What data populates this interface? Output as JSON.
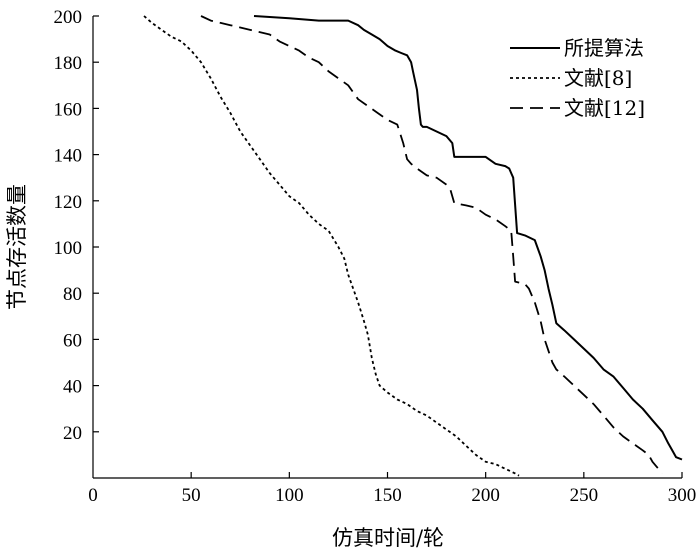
{
  "chart_data": {
    "type": "line",
    "title": "",
    "xlabel": "仿真时间/轮",
    "ylabel": "节点存活数量",
    "xlim": [
      0,
      300
    ],
    "ylim": [
      0,
      200
    ],
    "x_ticks": [
      0,
      50,
      100,
      150,
      200,
      250,
      300
    ],
    "y_ticks": [
      20,
      40,
      60,
      80,
      100,
      120,
      140,
      160,
      180,
      200
    ],
    "grid": false,
    "legend_position": "top-right",
    "series": [
      {
        "name": "所提算法",
        "style": "solid",
        "x": [
          82,
          100,
          115,
          130,
          135,
          138,
          142,
          146,
          150,
          154,
          157,
          160,
          162,
          163,
          164,
          165,
          166,
          167,
          168,
          170,
          175,
          180,
          183,
          184,
          190,
          200,
          205,
          210,
          212,
          213,
          214,
          216,
          220,
          225,
          228,
          230,
          232,
          234,
          236,
          240,
          245,
          250,
          255,
          260,
          265,
          270,
          275,
          280,
          285,
          290,
          293,
          295,
          297,
          300
        ],
        "y": [
          200,
          199,
          198,
          198,
          196,
          194,
          192,
          190,
          187,
          185,
          184,
          183,
          180,
          176,
          172,
          168,
          160,
          153,
          152,
          152,
          150,
          148,
          145,
          139,
          139,
          139,
          136,
          135,
          134,
          132,
          130,
          106,
          105,
          103,
          96,
          90,
          82,
          75,
          67,
          64,
          60,
          56,
          52,
          47,
          44,
          39,
          34,
          30,
          25,
          20,
          15,
          12,
          9,
          8
        ]
      },
      {
        "name": "文献[8]",
        "style": "dotted",
        "x": [
          26,
          30,
          35,
          40,
          45,
          50,
          55,
          60,
          65,
          70,
          75,
          80,
          85,
          90,
          95,
          100,
          105,
          110,
          115,
          120,
          125,
          128,
          130,
          135,
          138,
          140,
          142,
          144,
          146,
          150,
          155,
          160,
          165,
          170,
          175,
          180,
          185,
          190,
          195,
          200,
          205,
          210,
          215,
          217
        ],
        "y": [
          200,
          197,
          194,
          191,
          189,
          185,
          180,
          173,
          165,
          158,
          150,
          144,
          138,
          132,
          127,
          122,
          119,
          114,
          110,
          107,
          100,
          95,
          88,
          76,
          68,
          62,
          52,
          45,
          40,
          37,
          34,
          32,
          29,
          27,
          24,
          21,
          18,
          14,
          10,
          7,
          6,
          4,
          2,
          1
        ]
      },
      {
        "name": "文献[12]",
        "style": "dashed",
        "x": [
          55,
          60,
          65,
          70,
          80,
          90,
          95,
          100,
          105,
          110,
          115,
          120,
          125,
          130,
          135,
          140,
          145,
          150,
          155,
          158,
          160,
          162,
          165,
          170,
          175,
          180,
          182,
          184,
          190,
          195,
          200,
          205,
          210,
          213,
          214,
          215,
          220,
          222,
          225,
          228,
          230,
          232,
          234,
          236,
          240,
          245,
          250,
          255,
          260,
          265,
          270,
          275,
          280,
          283,
          285,
          288,
          290
        ],
        "y": [
          200,
          198,
          197,
          196,
          194,
          192,
          189,
          187,
          185,
          182,
          180,
          176,
          173,
          170,
          164,
          161,
          158,
          155,
          153,
          145,
          138,
          136,
          134,
          131,
          130,
          127,
          125,
          119,
          118,
          117,
          114,
          112,
          109,
          107,
          96,
          85,
          84,
          82,
          76,
          68,
          60,
          55,
          50,
          47,
          44,
          40,
          36,
          32,
          27,
          22,
          18,
          15,
          12,
          10,
          7,
          4,
          2
        ]
      }
    ]
  }
}
